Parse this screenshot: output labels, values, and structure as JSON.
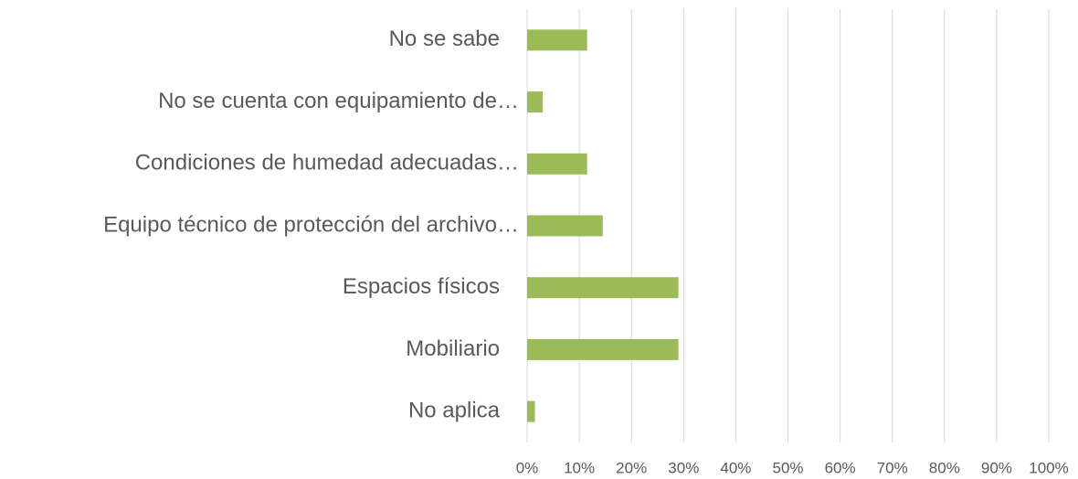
{
  "chart_data": {
    "type": "bar",
    "orientation": "horizontal",
    "categories": [
      "No se sabe",
      "No se cuenta con equipamiento de…",
      "Condiciones de humedad adecuadas…",
      "Equipo técnico de protección del archivo…",
      "Espacios físicos",
      "Mobiliario",
      "No aplica"
    ],
    "values": [
      11.5,
      3,
      11.5,
      14.5,
      29,
      29,
      1.5
    ],
    "color": "#9bbb59",
    "xlim": [
      0,
      100
    ],
    "xticks": [
      {
        "value": 0,
        "label": "0%"
      },
      {
        "value": 10,
        "label": "10%"
      },
      {
        "value": 20,
        "label": "20%"
      },
      {
        "value": 30,
        "label": "30%"
      },
      {
        "value": 40,
        "label": "40%"
      },
      {
        "value": 50,
        "label": "50%"
      },
      {
        "value": 60,
        "label": "60%"
      },
      {
        "value": 70,
        "label": "70%"
      },
      {
        "value": 80,
        "label": "80%"
      },
      {
        "value": 90,
        "label": "90%"
      },
      {
        "value": 100,
        "label": "100%"
      }
    ],
    "grid": true
  }
}
